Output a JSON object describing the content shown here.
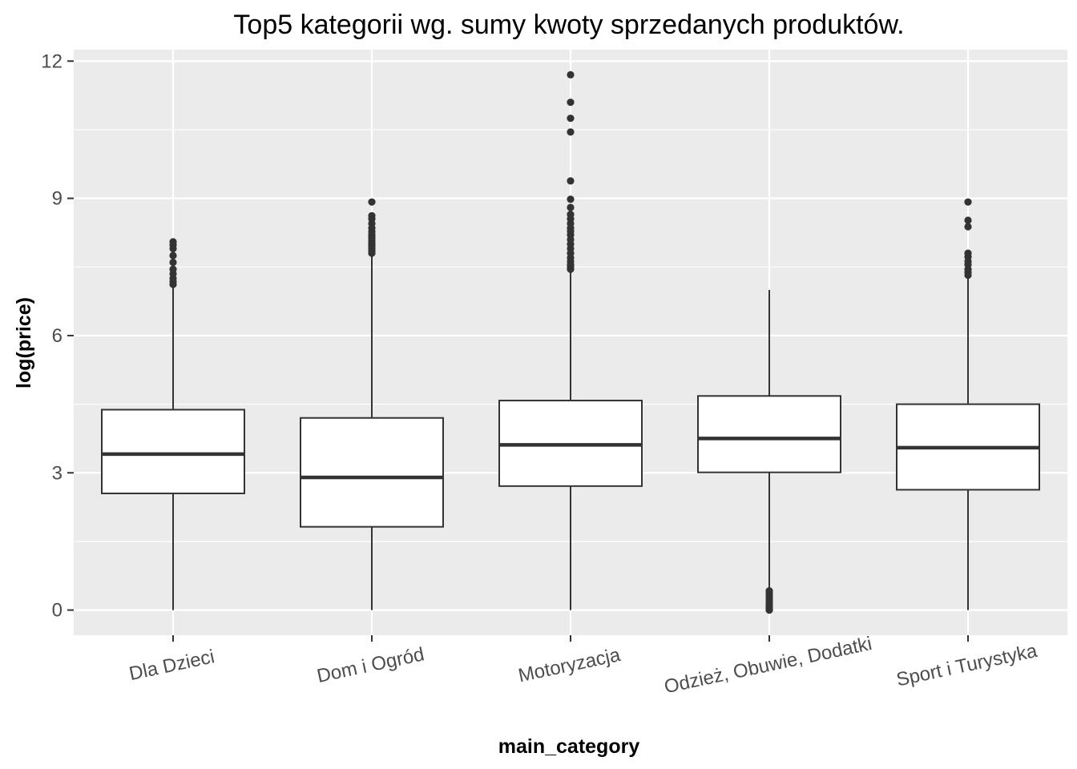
{
  "chart_data": {
    "type": "boxplot",
    "title": "Top5 kategorii wg. sumy kwoty sprzedanych produktów.",
    "xlabel": "main_category",
    "ylabel": "log(price)",
    "ylim": [
      -0.55,
      12.25
    ],
    "yticks": [
      0,
      3,
      6,
      9,
      12
    ],
    "grid": true,
    "categories": [
      "Dla Dzieci",
      "Dom i Ogród",
      "Motoryzacja",
      "Odzież, Obuwie, Dodatki",
      "Sport i Turystyka"
    ],
    "boxes": [
      {
        "category": "Dla Dzieci",
        "min": 0.0,
        "q1": 2.55,
        "median": 3.41,
        "q3": 4.38,
        "max": 7.1,
        "outliers": [
          7.12,
          7.18,
          7.25,
          7.35,
          7.45,
          7.6,
          7.75,
          7.9,
          7.98,
          8.05
        ]
      },
      {
        "category": "Dom i Ogród",
        "min": 0.0,
        "q1": 1.82,
        "median": 2.9,
        "q3": 4.2,
        "max": 7.76,
        "outliers": [
          7.8,
          7.85,
          7.9,
          7.95,
          8.0,
          8.05,
          8.1,
          8.15,
          8.2,
          8.27,
          8.35,
          8.45,
          8.55,
          8.62,
          8.92
        ]
      },
      {
        "category": "Motoryzacja",
        "min": 0.0,
        "q1": 2.71,
        "median": 3.61,
        "q3": 4.58,
        "max": 7.4,
        "outliers": [
          7.45,
          7.5,
          7.55,
          7.62,
          7.7,
          7.8,
          7.9,
          8.0,
          8.1,
          8.2,
          8.28,
          8.35,
          8.45,
          8.55,
          8.65,
          8.8,
          8.98,
          9.38,
          10.45,
          10.75,
          11.1,
          11.7
        ]
      },
      {
        "category": "Odzież, Obuwie, Dodatki",
        "min": 0.47,
        "q1": 3.01,
        "median": 3.75,
        "q3": 4.68,
        "max": 7.0,
        "outliers": [
          0.0,
          0.04,
          0.08,
          0.12,
          0.17,
          0.22,
          0.27,
          0.32,
          0.37,
          0.42
        ]
      },
      {
        "category": "Sport i Turystyka",
        "min": 0.0,
        "q1": 2.63,
        "median": 3.55,
        "q3": 4.5,
        "max": 7.28,
        "outliers": [
          7.32,
          7.38,
          7.45,
          7.55,
          7.62,
          7.72,
          7.8,
          8.38,
          8.52,
          8.92
        ]
      }
    ]
  }
}
